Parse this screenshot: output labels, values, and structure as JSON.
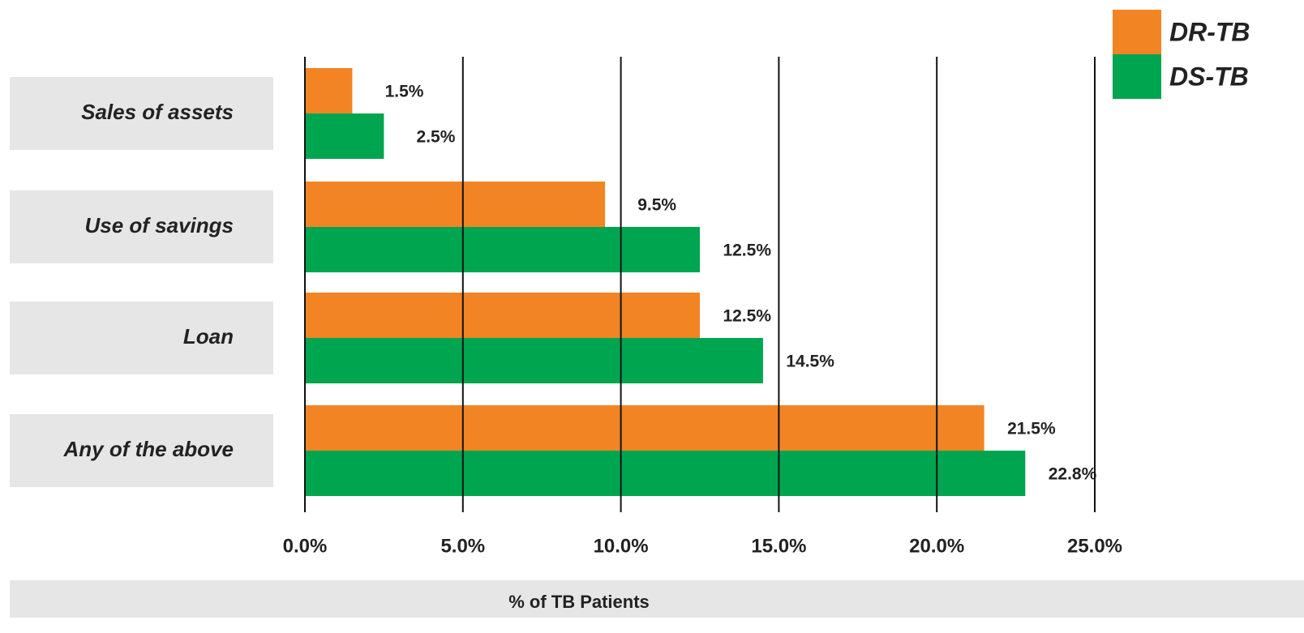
{
  "chart_data": {
    "type": "bar",
    "orientation": "horizontal",
    "categories": [
      "Sales of assets",
      "Use of savings",
      "Loan",
      "Any of the above"
    ],
    "series": [
      {
        "name": "DR-TB",
        "color": "#f28424",
        "values": [
          1.5,
          9.5,
          12.5,
          21.5
        ],
        "value_labels": [
          "1.5%",
          "9.5%",
          "12.5%",
          "21.5%"
        ]
      },
      {
        "name": "DS-TB",
        "color": "#00a550",
        "values": [
          2.5,
          12.5,
          14.5,
          22.8
        ],
        "value_labels": [
          "2.5%",
          "12.5%",
          "14.5%",
          "22.8%"
        ]
      }
    ],
    "xlim": [
      0,
      25
    ],
    "xticks": [
      {
        "value": 0,
        "label": "0.0%"
      },
      {
        "value": 5,
        "label": "5.0%"
      },
      {
        "value": 10,
        "label": "10.0%"
      },
      {
        "value": 15,
        "label": "15.0%"
      },
      {
        "value": 20,
        "label": "20.0%"
      },
      {
        "value": 25,
        "label": "25.0%"
      }
    ],
    "xlabel": "% of TB  Patients",
    "grid": true,
    "legend": "top-right"
  }
}
